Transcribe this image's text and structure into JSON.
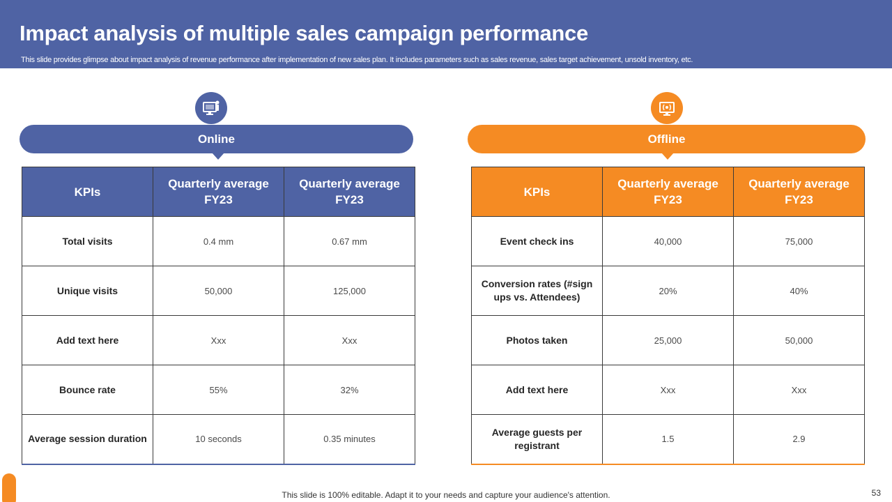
{
  "header": {
    "title": "Impact analysis of multiple sales campaign performance",
    "subtitle": "This slide provides glimpse about impact analysis of revenue performance after implementation of new sales plan. It includes parameters such as sales revenue, sales target achievement, unsold inventory, etc."
  },
  "online": {
    "icon": "computer-user-icon",
    "label": "Online",
    "headers": [
      "KPIs",
      "Quarterly average FY23",
      "Quarterly average FY23"
    ],
    "rows": [
      {
        "kpi": "Total visits",
        "v1": "0.4 mm",
        "v2": "0.67 mm"
      },
      {
        "kpi": "Unique visits",
        "v1": "50,000",
        "v2": "125,000"
      },
      {
        "kpi": "Add text here",
        "v1": "Xxx",
        "v2": "Xxx"
      },
      {
        "kpi": "Bounce rate",
        "v1": "55%",
        "v2": "32%"
      },
      {
        "kpi": "Average session duration",
        "v1": "10 seconds",
        "v2": "0.35 minutes"
      }
    ]
  },
  "offline": {
    "icon": "broadcast-monitor-icon",
    "label": "Offline",
    "headers": [
      "KPIs",
      "Quarterly average FY23",
      "Quarterly average FY23"
    ],
    "rows": [
      {
        "kpi": "Event check ins",
        "v1": "40,000",
        "v2": "75,000"
      },
      {
        "kpi": "Conversion rates (#sign ups vs. Attendees)",
        "v1": "20%",
        "v2": "40%"
      },
      {
        "kpi": "Photos taken",
        "v1": "25,000",
        "v2": "50,000"
      },
      {
        "kpi": "Add text here",
        "v1": "Xxx",
        "v2": "Xxx"
      },
      {
        "kpi": "Average guests per registrant",
        "v1": "1.5",
        "v2": "2.9"
      }
    ]
  },
  "footer": {
    "text": "This slide is 100% editable. Adapt it to your needs and capture your audience's attention.",
    "page_number": "53"
  },
  "colors": {
    "online_accent": "#4f63a4",
    "offline_accent": "#f58b23"
  }
}
